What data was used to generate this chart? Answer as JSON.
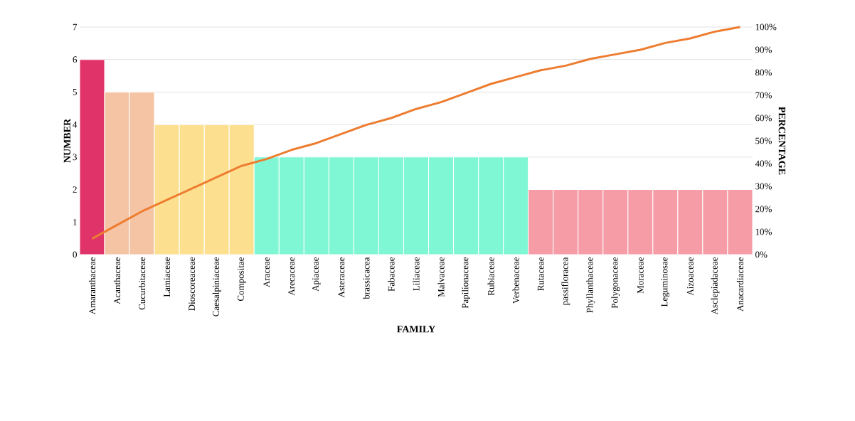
{
  "chart_data": {
    "type": "bar",
    "xlabel": "FAMILY",
    "ylabel": "NUMBER",
    "y2label": "PERCENTAGE",
    "categories": [
      "Amaranthaceae",
      "Acanthaceae",
      "Cucurbitaceae",
      "Lamiaceae",
      "Dioscoreaceae",
      "Caesalpiniaceae",
      "Compositae",
      "Araceae",
      "Arecaceae",
      "Apiaceae",
      "Asteraceae",
      "brassicacea",
      "Fabaceae",
      "Liliaceae",
      "Malvaceae",
      "Papilionaceae",
      "Rubiaceae",
      "Verbenaceae",
      "Rutaceae",
      "passifloracea",
      "Phyllanthaceae",
      "Polygonaceae",
      "Moraceae",
      "Leguminosae",
      "Aizoaceae",
      "Asclepiadaceae",
      "Anacardiaceae"
    ],
    "series": [
      {
        "values": [
          6,
          5,
          5,
          4,
          4,
          4,
          4,
          3,
          3,
          3,
          3,
          3,
          3,
          3,
          3,
          3,
          3,
          3,
          2,
          2,
          2,
          2,
          2,
          2,
          2,
          2,
          2
        ],
        "colors": [
          "#e0336a",
          "#f5c4a4",
          "#f5c4a4",
          "#fde08f",
          "#fde08f",
          "#fde08f",
          "#fde08f",
          "#80f7d4",
          "#80f7d4",
          "#80f7d4",
          "#80f7d4",
          "#80f7d4",
          "#80f7d4",
          "#80f7d4",
          "#80f7d4",
          "#80f7d4",
          "#80f7d4",
          "#80f7d4",
          "#f59ca6",
          "#f59ca6",
          "#f59ca6",
          "#f59ca6",
          "#f59ca6",
          "#f59ca6",
          "#f59ca6",
          "#f59ca6",
          "#f59ca6"
        ]
      },
      {
        "type": "line",
        "axis": "y2",
        "color": "#ed7d31",
        "values": [
          7,
          13,
          19,
          24,
          29,
          34,
          39,
          42,
          46,
          49,
          53,
          57,
          60,
          64,
          67,
          71,
          75,
          78,
          81,
          83,
          86,
          88,
          90,
          93,
          95,
          98,
          100
        ]
      }
    ],
    "ylim": [
      0,
      7
    ],
    "yticks": [
      0,
      1,
      2,
      3,
      4,
      5,
      6,
      7
    ],
    "y2lim": [
      0,
      100
    ],
    "y2ticks": [
      {
        "value": 0,
        "label": "0%"
      },
      {
        "value": 10,
        "label": "10%"
      },
      {
        "value": 20,
        "label": "20%"
      },
      {
        "value": 30,
        "label": "30%"
      },
      {
        "value": 40,
        "label": "40%"
      },
      {
        "value": 50,
        "label": "50%"
      },
      {
        "value": 60,
        "label": "60%"
      },
      {
        "value": 70,
        "label": "70%"
      },
      {
        "value": 80,
        "label": "80%"
      },
      {
        "value": 90,
        "label": "90%"
      },
      {
        "value": 100,
        "label": "100%"
      }
    ],
    "grid": "y"
  }
}
